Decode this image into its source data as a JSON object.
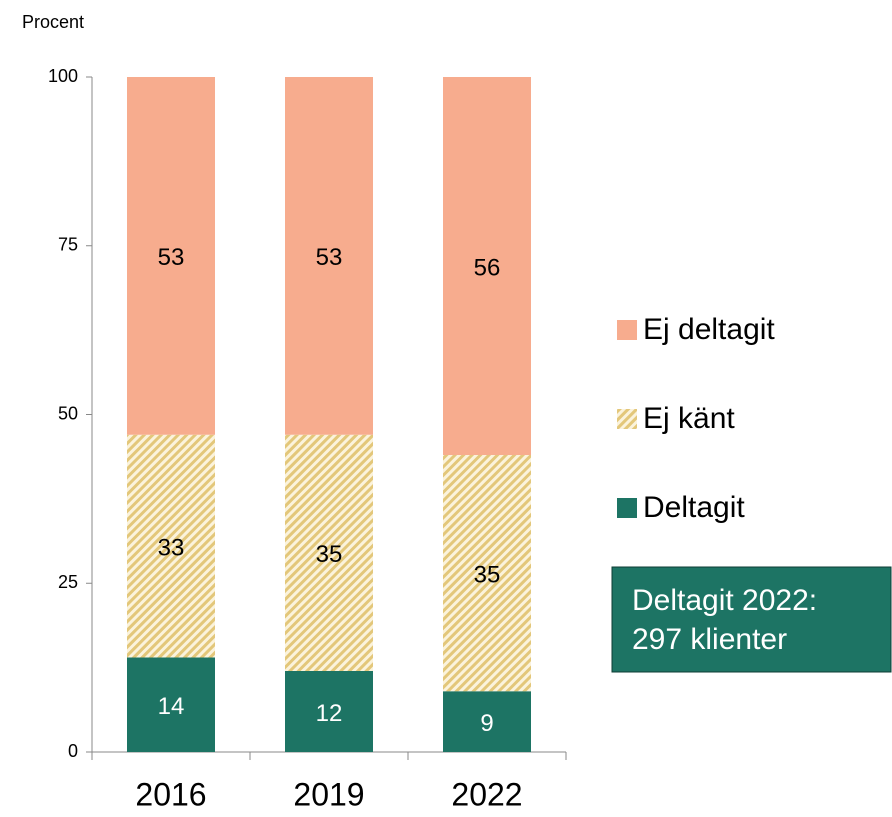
{
  "chart_data": {
    "type": "stacked_bar",
    "ylabel": "Procent",
    "categories": [
      "2016",
      "2019",
      "2022"
    ],
    "series": [
      {
        "name": "Deltagit",
        "color": "#1d7464",
        "label_color": "#ffffff",
        "values": [
          14,
          12,
          9
        ]
      },
      {
        "name": "Ej känt",
        "color": "#e3c77a",
        "hatch": true,
        "label_color": "#000000",
        "values": [
          33,
          35,
          35
        ]
      },
      {
        "name": "Ej deltagit",
        "color": "#f7ac8e",
        "label_color": "#000000",
        "values": [
          53,
          53,
          56
        ]
      }
    ],
    "ylim": [
      0,
      100
    ],
    "yticks": [
      0,
      25,
      50,
      75,
      100
    ],
    "legend": "right",
    "annotation": {
      "lines": [
        "Deltagit 2022:",
        "297 klienter"
      ],
      "color": "#1d7464"
    }
  }
}
